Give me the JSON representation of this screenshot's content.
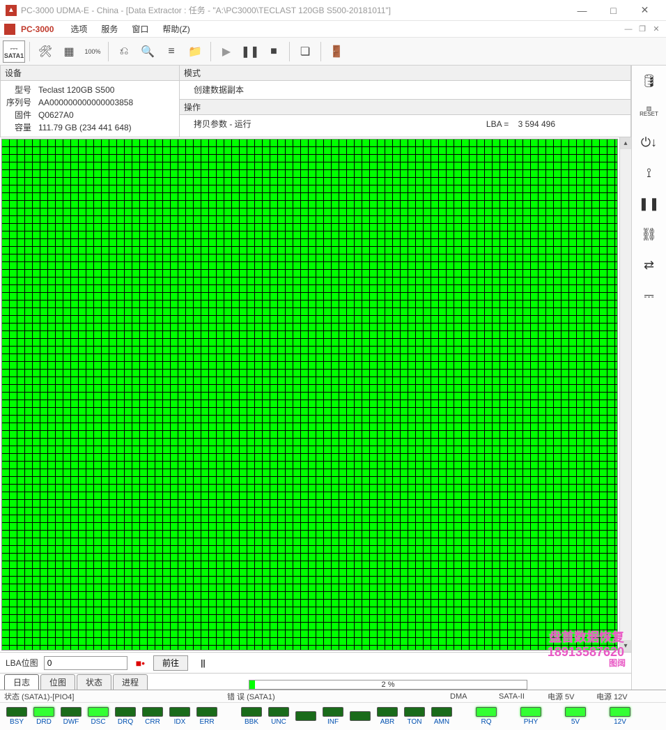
{
  "window": {
    "title": "PC-3000 UDMA-E - China - [Data Extractor : 任务 - \"A:\\PC3000\\TECLAST 120GB S500-20181011\"]",
    "minimize": "—",
    "maximize": "□",
    "close": "✕"
  },
  "menubar": {
    "appLabel": "PC-3000",
    "items": [
      "选项",
      "服务",
      "窗口",
      "帮助(Z)"
    ]
  },
  "toolbar": {
    "sata": "SATA1",
    "percent": "100%"
  },
  "device": {
    "title": "设备",
    "modelLabel": "型号",
    "model": "Teclast 120GB S500",
    "serialLabel": "序列号",
    "serial": "AA000000000000003858",
    "fwLabel": "固件",
    "fw": "Q0627A0",
    "capLabel": "容量",
    "cap": "111.79 GB (234 441 648)"
  },
  "mode": {
    "title": "模式",
    "value": "创建数据副本"
  },
  "operation": {
    "title": "操作",
    "copy": "拷贝参数 - 运行",
    "lbaLabel": "LBA =",
    "lba": "3 594 496"
  },
  "nav": {
    "label": "LBA位图",
    "value": "0",
    "go": "前往",
    "pause": "||",
    "zoom": "图阔"
  },
  "tabs": {
    "items": [
      "日志",
      "位图",
      "状态",
      "进程"
    ],
    "activeIndex": 0
  },
  "progress": {
    "percent": 2,
    "text": "2 %"
  },
  "status": {
    "sataHeader": "状态 (SATA1)-[PIO4]",
    "errHeader": "错 误 (SATA1)",
    "dmaHeader": "DMA",
    "sata2Header": "SATA-II",
    "pwr5Header": "电源 5V",
    "pwr12Header": "电源 12V",
    "leds": {
      "status": [
        {
          "label": "BSY",
          "on": false
        },
        {
          "label": "DRD",
          "on": true
        },
        {
          "label": "DWF",
          "on": false
        },
        {
          "label": "DSC",
          "on": true
        },
        {
          "label": "DRQ",
          "on": false
        },
        {
          "label": "CRR",
          "on": false
        },
        {
          "label": "IDX",
          "on": false
        },
        {
          "label": "ERR",
          "on": false
        }
      ],
      "error": [
        {
          "label": "BBK",
          "on": false
        },
        {
          "label": "UNC",
          "on": false
        },
        {
          "label": "",
          "on": false
        },
        {
          "label": "INF",
          "on": false
        },
        {
          "label": "",
          "on": false
        },
        {
          "label": "ABR",
          "on": false
        },
        {
          "label": "TON",
          "on": false
        },
        {
          "label": "AMN",
          "on": false
        }
      ],
      "dma": {
        "label": "RQ",
        "on": true
      },
      "sata2": {
        "label": "PHY",
        "on": true
      },
      "pwr5": {
        "label": "5V",
        "on": true
      },
      "pwr12": {
        "label": "12V",
        "on": true
      }
    }
  },
  "sectorMap": {
    "cellColor": "#00ff00",
    "gridColor": "#000000",
    "cellSize": 11,
    "rows": 70,
    "cols": 80
  },
  "watermark": {
    "line1": "盘首数据恢复",
    "line2": "18913587620"
  },
  "sideTools": {
    "reset": "RESET"
  }
}
